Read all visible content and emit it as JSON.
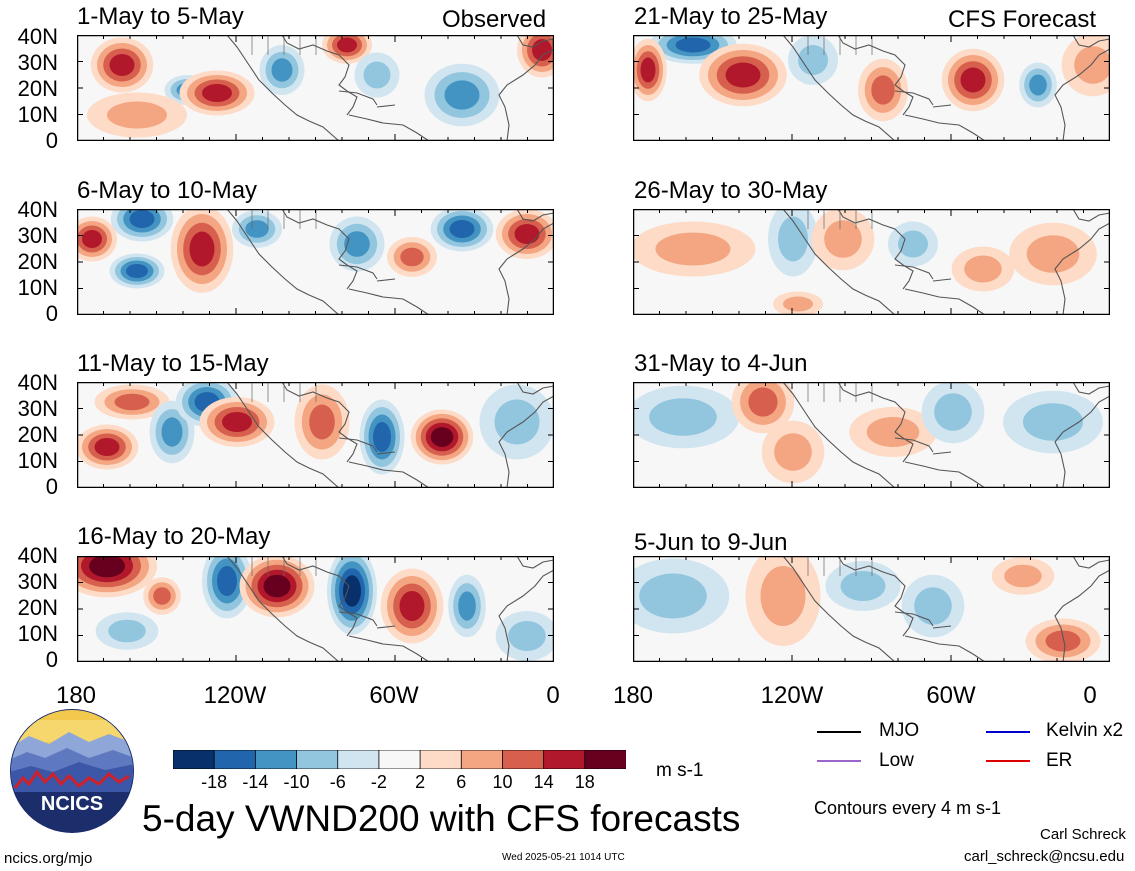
{
  "header": {
    "left_label": "Observed",
    "right_label": "CFS Forecast"
  },
  "panels_observed": [
    {
      "title": "1-May to 5-May"
    },
    {
      "title": "6-May to 10-May"
    },
    {
      "title": "11-May to 15-May"
    },
    {
      "title": "16-May to 20-May"
    }
  ],
  "panels_forecast": [
    {
      "title": "21-May to 25-May"
    },
    {
      "title": "26-May to 30-May"
    },
    {
      "title": "31-May to 4-Jun"
    },
    {
      "title": "5-Jun to 9-Jun"
    }
  ],
  "yaxis": {
    "ticks": [
      "40N",
      "30N",
      "20N",
      "10N",
      "0"
    ]
  },
  "xaxis": {
    "ticks": [
      "180",
      "120W",
      "60W",
      "0"
    ]
  },
  "colorbar": {
    "unit": "m s-1",
    "labels": [
      "-18",
      "-14",
      "-10",
      "-6",
      "-2",
      "2",
      "6",
      "10",
      "14",
      "18"
    ],
    "colors": [
      "#08306b",
      "#2166ac",
      "#4393c3",
      "#92c5de",
      "#d1e5f0",
      "#f7f7f7",
      "#fddbc7",
      "#f4a582",
      "#d6604d",
      "#b2182b",
      "#67001f"
    ]
  },
  "legend": {
    "items": [
      {
        "label": "MJO",
        "color": "#000000"
      },
      {
        "label": "Kelvin x2",
        "color": "#0000cc"
      },
      {
        "label": "Low",
        "color": "#9966cc"
      },
      {
        "label": "ER",
        "color": "#dd0000"
      }
    ],
    "contours_note": "Contours every 4 m s-1"
  },
  "footer": {
    "main_title": "5-day VWND200 with CFS forecasts",
    "logo_text": "NCICS",
    "site": "ncics.org/mjo",
    "timestamp": "Wed 2025-05-21 1014 UTC",
    "author": "Carl Schreck",
    "email": "carl_schreck@ncsu.edu"
  }
}
